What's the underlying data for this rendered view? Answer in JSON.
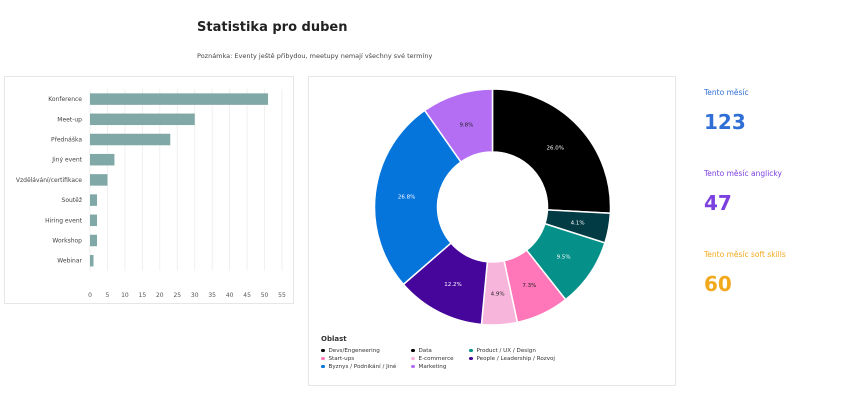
{
  "header": {
    "title": "Statistika pro duben",
    "note": "Poznámka: Eventy ještě přibydou, meetupy nemají všechny své termíny"
  },
  "chart_data": [
    {
      "type": "bar",
      "orientation": "horizontal",
      "categories": [
        "Konference",
        "Meet-up",
        "Přednáška",
        "Jiný event",
        "Vzdělávání/certifikace",
        "Soutěž",
        "Hiring event",
        "Workshop",
        "Webinar"
      ],
      "values": [
        51,
        30,
        23,
        7,
        5,
        2,
        2,
        2,
        1
      ],
      "ticks": [
        0,
        5,
        10,
        15,
        20,
        25,
        30,
        35,
        40,
        45,
        50,
        55
      ],
      "xlim": [
        0,
        55
      ],
      "color": "#7fa8a6",
      "grid": true
    },
    {
      "type": "pie",
      "donut": true,
      "legend_title": "Oblast",
      "legend_position": "bottom-left",
      "slices": [
        {
          "name": "Data",
          "value": 26.0,
          "label": "26.0%",
          "color": "#000000",
          "text_color": "#ffffff"
        },
        {
          "name": "",
          "value": 4.1,
          "label": "4.1%",
          "color": "#033b44",
          "text_color": "#ffffff"
        },
        {
          "name": "Product / UX / Design",
          "value": 9.5,
          "label": "9.5%",
          "color": "#059189",
          "text_color": "#ffffff"
        },
        {
          "name": "Start-ups",
          "value": 7.3,
          "label": "7.3%",
          "color": "#ff77b9",
          "text_color": "#222222"
        },
        {
          "name": "E-commerce",
          "value": 4.9,
          "label": "4.9%",
          "color": "#f8b5dc",
          "text_color": "#222222"
        },
        {
          "name": "People / Leadership / Rozvoj",
          "value": 12.2,
          "label": "12.2%",
          "color": "#46059b",
          "text_color": "#ffffff"
        },
        {
          "name": "Byznys / Podnikání / Jiné",
          "value": 26.8,
          "label": "26.8%",
          "color": "#0574db",
          "text_color": "#ffffff"
        },
        {
          "name": "Marketing",
          "value": 9.8,
          "label": "9.8%",
          "color": "#b46ef4",
          "text_color": "#222222"
        }
      ],
      "legend": [
        {
          "label": "Devs/Engeneering",
          "color": "#0a0a0a"
        },
        {
          "label": "Data",
          "color": "#000000"
        },
        {
          "label": "Product / UX / Design",
          "color": "#059189"
        },
        {
          "label": "Start-ups",
          "color": "#ff77b9"
        },
        {
          "label": "E-commerce",
          "color": "#f8b5dc"
        },
        {
          "label": "People / Leadership / Rozvoj",
          "color": "#46059b"
        },
        {
          "label": "Byznys / Podnikání / Jiné",
          "color": "#0574db"
        },
        {
          "label": "Marketing",
          "color": "#b46ef4"
        }
      ]
    }
  ],
  "kpis": [
    {
      "label": "Tento měsíc",
      "value": "123",
      "color": "#2f6fd6"
    },
    {
      "label": "Tento měsíc anglicky",
      "value": "47",
      "color": "#7c3fe0"
    },
    {
      "label": "Tento měsíc soft skills",
      "value": "60",
      "color": "#f2a91c"
    }
  ]
}
